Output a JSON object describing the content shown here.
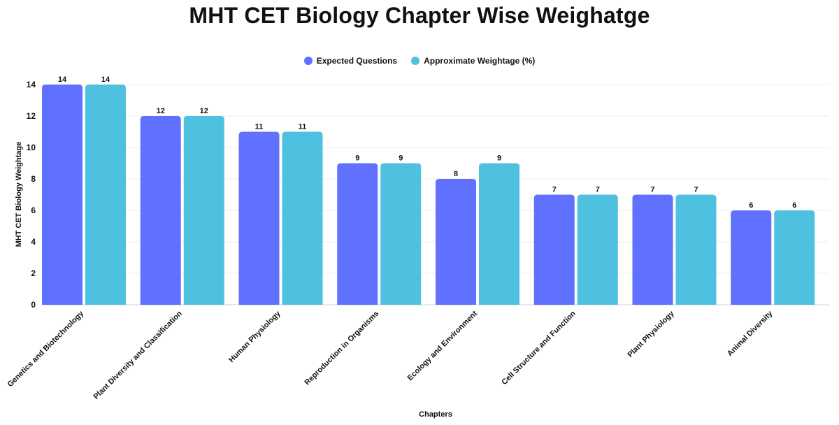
{
  "chart_data": {
    "type": "bar",
    "title": "MHT CET Biology Chapter Wise Weighatge",
    "xlabel": "Chapters",
    "ylabel": "MHT CET Biology Weightage",
    "ylim": [
      0,
      14
    ],
    "yticks": [
      0,
      2,
      4,
      6,
      8,
      10,
      12,
      14
    ],
    "grid": true,
    "legend_position": "top-center",
    "categories": [
      "Genetics and Biotechnology",
      "Plant Diversity and Classification",
      "Human Physiology",
      "Reproduction in Organisms",
      "Ecology and Environment",
      "Cell Structure and Function",
      "Plant Physiology",
      "Animal Diversity"
    ],
    "series": [
      {
        "name": "Expected Questions",
        "color": "#6070FF",
        "values": [
          14,
          12,
          11,
          9,
          8,
          7,
          7,
          6
        ]
      },
      {
        "name": "Approximate Weightage (%)",
        "color": "#4FC1E0",
        "values": [
          14,
          12,
          11,
          9,
          9,
          7,
          7,
          6
        ]
      }
    ]
  }
}
